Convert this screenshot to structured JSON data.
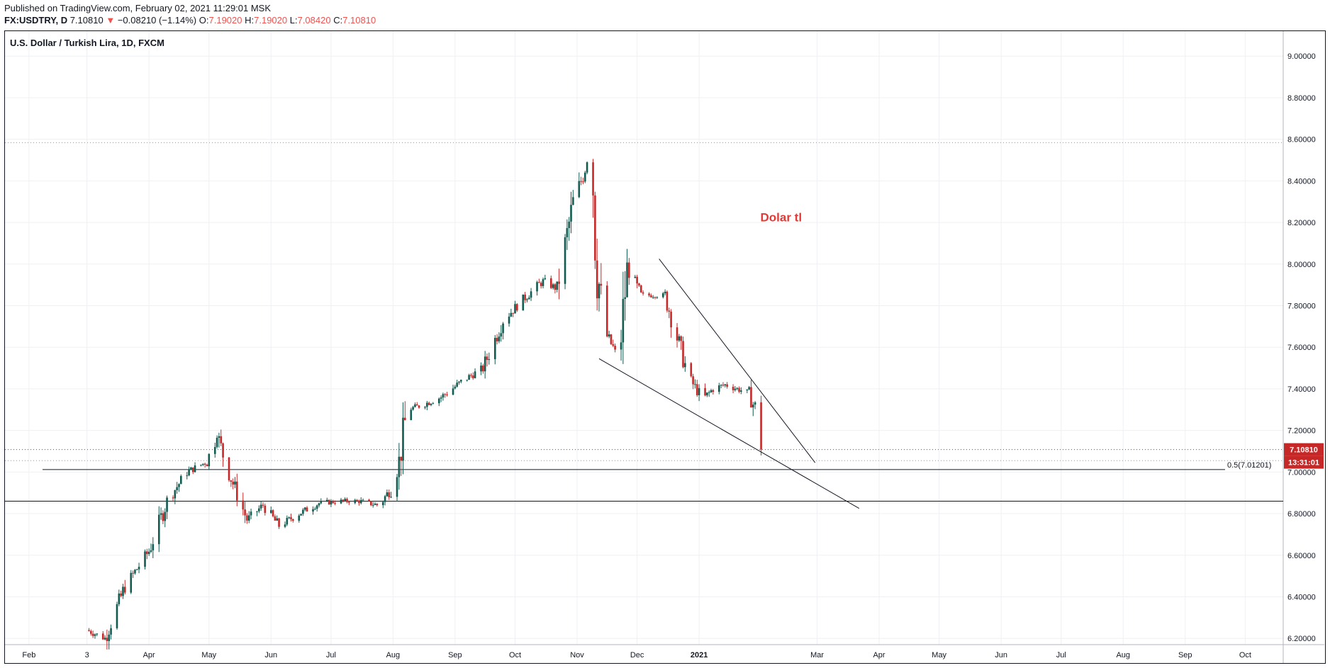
{
  "header": {
    "published": "Published on TradingView.com, February 02, 2021 11:29:01 MSK",
    "symbol": "FX:USDTRY, D",
    "last": "7.10810",
    "change_arrow": "▼",
    "change": "−0.08210 (−1.14%)",
    "o_label": "O:",
    "o_value": "7.19020",
    "h_label": "H:",
    "h_value": "7.19020",
    "l_label": "L:",
    "l_value": "7.08420",
    "c_label": "C:",
    "c_value": "7.10810"
  },
  "chart_title": "U.S. Dollar / Turkish Lira, 1D, FXCM",
  "colors": {
    "up": "#26a69a",
    "up_body": "#115b50",
    "down": "#c62828",
    "price_tag": "#c62828",
    "grid": "#eef0f3",
    "text": "#131722",
    "annotation": "#e53935"
  },
  "chart_data": {
    "type": "candlestick",
    "title": "U.S. Dollar / Turkish Lira, 1D, FXCM",
    "xlabel": "",
    "ylabel": "",
    "ylim": [
      6.17,
      9.12
    ],
    "grid": true,
    "y_ticks": [
      "6.20000",
      "6.40000",
      "6.60000",
      "6.80000",
      "7.00000",
      "7.20000",
      "7.40000",
      "7.60000",
      "7.80000",
      "8.00000",
      "8.20000",
      "8.40000",
      "8.60000",
      "8.80000",
      "9.00000"
    ],
    "x_tick_labels": [
      "Feb",
      "3",
      "Apr",
      "May",
      "Jun",
      "Jul",
      "Aug",
      "Sep",
      "Oct",
      "Nov",
      "Dec",
      "2021",
      "Mar",
      "Apr",
      "May",
      "Jun",
      "Jul",
      "Aug",
      "Sep",
      "Oct"
    ],
    "x_tick_dates": [
      "2020-02-01",
      "2020-03-01",
      "2020-04-01",
      "2020-05-01",
      "2020-06-01",
      "2020-07-01",
      "2020-08-01",
      "2020-09-01",
      "2020-10-01",
      "2020-11-01",
      "2020-12-01",
      "2021-01-01",
      "2021-03-01",
      "2021-04-01",
      "2021-05-01",
      "2021-06-01",
      "2021-07-01",
      "2021-08-01",
      "2021-09-01",
      "2021-10-01"
    ],
    "x_start": "2020-01-20",
    "x_end": "2021-10-20",
    "price_path": [
      [
        "2020-03-01",
        6.24
      ],
      [
        "2020-03-10",
        6.2
      ],
      [
        "2020-03-20",
        6.45
      ],
      [
        "2020-04-01",
        6.62
      ],
      [
        "2020-04-10",
        6.86
      ],
      [
        "2020-04-20",
        7.0
      ],
      [
        "2020-04-30",
        7.05
      ],
      [
        "2020-05-05",
        7.18
      ],
      [
        "2020-05-10",
        7.02
      ],
      [
        "2020-05-20",
        6.77
      ],
      [
        "2020-05-28",
        6.84
      ],
      [
        "2020-06-05",
        6.74
      ],
      [
        "2020-06-15",
        6.8
      ],
      [
        "2020-06-25",
        6.85
      ],
      [
        "2020-07-05",
        6.86
      ],
      [
        "2020-07-15",
        6.86
      ],
      [
        "2020-07-25",
        6.84
      ],
      [
        "2020-07-31",
        6.92
      ],
      [
        "2020-08-04",
        7.05
      ],
      [
        "2020-08-08",
        7.3
      ],
      [
        "2020-08-15",
        7.32
      ],
      [
        "2020-08-25",
        7.36
      ],
      [
        "2020-09-05",
        7.44
      ],
      [
        "2020-09-15",
        7.5
      ],
      [
        "2020-09-25",
        7.73
      ],
      [
        "2020-10-05",
        7.83
      ],
      [
        "2020-10-15",
        7.92
      ],
      [
        "2020-10-22",
        7.88
      ],
      [
        "2020-10-30",
        8.3
      ],
      [
        "2020-11-03",
        8.4
      ],
      [
        "2020-11-06",
        8.5
      ],
      [
        "2020-11-09",
        8.38
      ],
      [
        "2020-11-11",
        7.98
      ],
      [
        "2020-11-15",
        7.67
      ],
      [
        "2020-11-20",
        7.58
      ],
      [
        "2020-11-23",
        7.65
      ],
      [
        "2020-11-26",
        7.98
      ],
      [
        "2020-12-03",
        7.85
      ],
      [
        "2020-12-10",
        7.85
      ],
      [
        "2020-12-15",
        7.85
      ],
      [
        "2020-12-20",
        7.68
      ],
      [
        "2020-12-27",
        7.45
      ],
      [
        "2021-01-03",
        7.35
      ],
      [
        "2021-01-08",
        7.4
      ],
      [
        "2021-01-14",
        7.42
      ],
      [
        "2021-01-20",
        7.4
      ],
      [
        "2021-01-26",
        7.38
      ],
      [
        "2021-01-29",
        7.3
      ],
      [
        "2021-02-01",
        7.1
      ]
    ],
    "horizontal_levels": [
      {
        "value": 8.584,
        "style": "dotted"
      },
      {
        "value": 7.1081,
        "style": "dotted-red"
      },
      {
        "value": 7.055,
        "style": "dotted"
      },
      {
        "value": 7.012,
        "style": "solid",
        "label": "0.5(7.01201)"
      },
      {
        "value": 6.86,
        "style": "solid"
      }
    ],
    "trendlines": [
      {
        "from": [
          "2020-11-12",
          7.545
        ],
        "to": [
          "2021-03-22",
          6.825
        ]
      },
      {
        "from": [
          "2020-12-12",
          8.025
        ],
        "to": [
          "2021-02-28",
          7.045
        ]
      }
    ],
    "annotations": [
      {
        "text": "Dolar tl",
        "at": [
          "2021-02-11",
          8.205
        ]
      }
    ],
    "last_price_label": "7.10810",
    "countdown_label": "13:31:01",
    "fib_label": "0.5(7.01201)"
  }
}
